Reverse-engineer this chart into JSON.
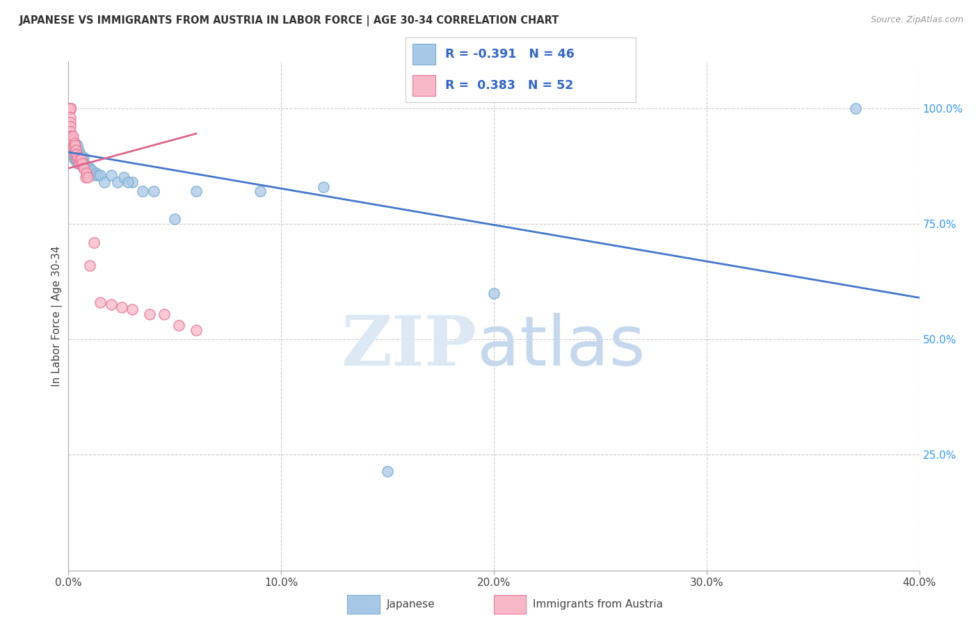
{
  "title": "JAPANESE VS IMMIGRANTS FROM AUSTRIA IN LABOR FORCE | AGE 30-34 CORRELATION CHART",
  "source": "Source: ZipAtlas.com",
  "ylabel": "In Labor Force | Age 30-34",
  "xlim": [
    0.0,
    0.4
  ],
  "ylim": [
    0.0,
    1.1
  ],
  "xtick_labels": [
    "0.0%",
    "10.0%",
    "20.0%",
    "30.0%",
    "40.0%"
  ],
  "xtick_values": [
    0.0,
    0.1,
    0.2,
    0.3,
    0.4
  ],
  "ytick_labels_right": [
    "100.0%",
    "75.0%",
    "50.0%",
    "25.0%"
  ],
  "ytick_values_right": [
    1.0,
    0.75,
    0.5,
    0.25
  ],
  "blue_R": -0.391,
  "blue_N": 46,
  "pink_R": 0.383,
  "pink_N": 52,
  "blue_color": "#A8C8E8",
  "blue_edge_color": "#7AAED0",
  "blue_line_color": "#4477CC",
  "pink_color": "#F8B8C8",
  "pink_edge_color": "#E87898",
  "pink_line_color": "#DD6688",
  "background_color": "#FFFFFF",
  "grid_color": "#CCCCCC",
  "blue_line_y0": 0.905,
  "blue_line_y1": 0.59,
  "pink_line_x0": 0.0,
  "pink_line_x1": 0.06,
  "pink_line_y0": 0.87,
  "pink_line_y1": 0.945,
  "blue_x": [
    0.0015,
    0.002,
    0.0022,
    0.0025,
    0.0028,
    0.003,
    0.0032,
    0.0035,
    0.0038,
    0.004,
    0.0042,
    0.0045,
    0.0048,
    0.005,
    0.0052,
    0.0055,
    0.0058,
    0.006,
    0.0065,
    0.007,
    0.0075,
    0.008,
    0.0085,
    0.009,
    0.0095,
    0.01,
    0.011,
    0.012,
    0.013,
    0.014,
    0.015,
    0.017,
    0.02,
    0.023,
    0.026,
    0.03,
    0.035,
    0.04,
    0.05,
    0.06,
    0.09,
    0.12,
    0.15,
    0.2,
    0.37,
    0.028
  ],
  "blue_y": [
    0.925,
    0.91,
    0.9,
    0.895,
    0.89,
    0.925,
    0.915,
    0.89,
    0.9,
    0.92,
    0.88,
    0.895,
    0.91,
    0.895,
    0.88,
    0.9,
    0.88,
    0.895,
    0.88,
    0.895,
    0.88,
    0.875,
    0.87,
    0.875,
    0.865,
    0.87,
    0.865,
    0.855,
    0.86,
    0.855,
    0.855,
    0.84,
    0.855,
    0.84,
    0.85,
    0.84,
    0.82,
    0.82,
    0.76,
    0.82,
    0.82,
    0.83,
    0.215,
    0.6,
    1.0,
    0.84
  ],
  "pink_x": [
    0.0005,
    0.0006,
    0.0007,
    0.0008,
    0.0009,
    0.001,
    0.001,
    0.001,
    0.001,
    0.001,
    0.001,
    0.001,
    0.001,
    0.001,
    0.001,
    0.001,
    0.001,
    0.0012,
    0.0013,
    0.0014,
    0.0015,
    0.0016,
    0.0018,
    0.002,
    0.0022,
    0.0025,
    0.0028,
    0.003,
    0.0032,
    0.0035,
    0.0038,
    0.004,
    0.0045,
    0.005,
    0.0055,
    0.006,
    0.0065,
    0.007,
    0.0075,
    0.008,
    0.0085,
    0.009,
    0.01,
    0.012,
    0.015,
    0.02,
    0.025,
    0.03,
    0.038,
    0.045,
    0.052,
    0.06
  ],
  "pink_y": [
    1.0,
    1.0,
    1.0,
    1.0,
    1.0,
    1.0,
    1.0,
    1.0,
    1.0,
    1.0,
    1.0,
    1.0,
    0.98,
    0.97,
    0.96,
    0.95,
    0.94,
    0.94,
    0.93,
    0.94,
    0.93,
    0.92,
    0.93,
    0.94,
    0.92,
    0.915,
    0.925,
    0.92,
    0.9,
    0.91,
    0.9,
    0.89,
    0.895,
    0.88,
    0.89,
    0.89,
    0.88,
    0.87,
    0.87,
    0.85,
    0.86,
    0.85,
    0.66,
    0.71,
    0.58,
    0.575,
    0.57,
    0.565,
    0.555,
    0.555,
    0.53,
    0.52
  ]
}
